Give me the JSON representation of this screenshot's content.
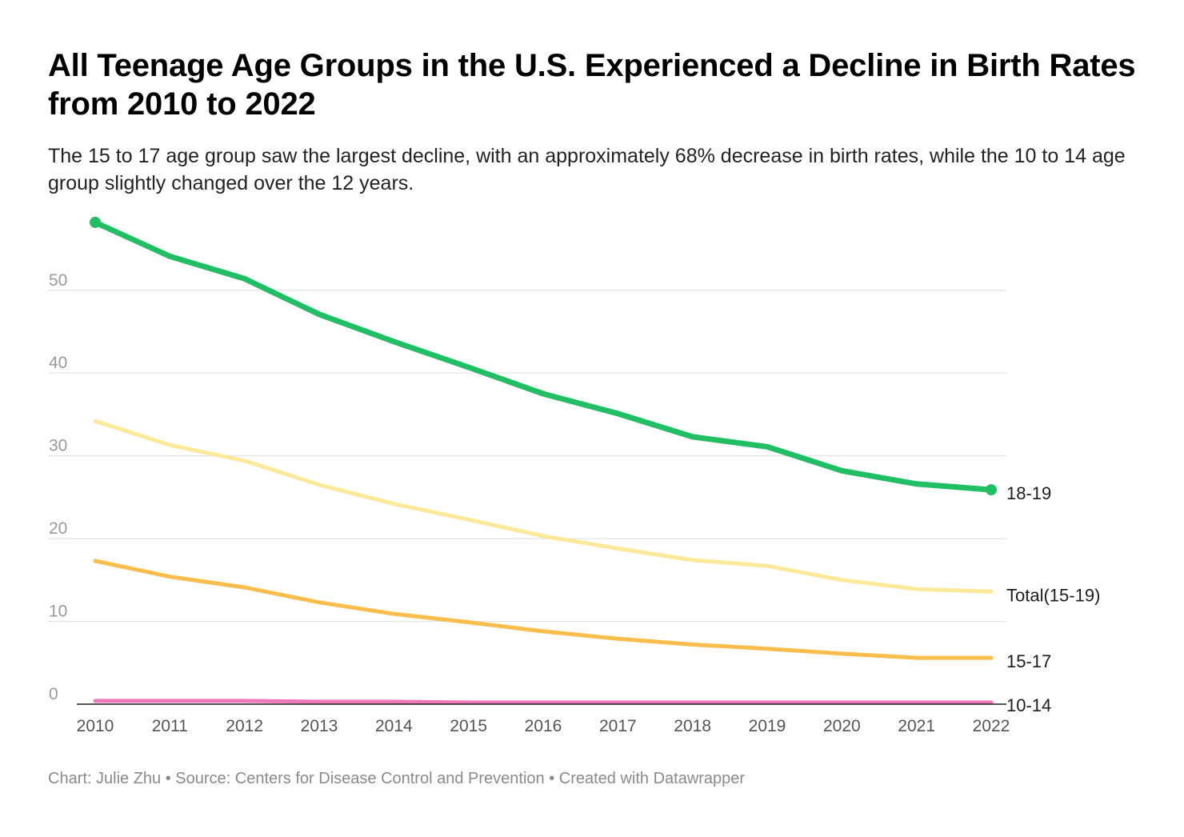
{
  "header": {
    "title": "All Teenage Age Groups in the U.S. Experienced a Decline in Birth Rates from 2010 to 2022",
    "subtitle": "The 15 to 17 age group saw the largest decline, with an approximately 68% decrease in birth rates, while the 10 to 14 age group slightly changed over the 12 years."
  },
  "footer": {
    "text": "Chart: Julie Zhu • Source: Centers for Disease Control and Prevention • Created with Datawrapper"
  },
  "chart_data": {
    "type": "line",
    "title": "All Teenage Age Groups in the U.S. Experienced a Decline in Birth Rates from 2010 to 2022",
    "subtitle": "The 15 to 17 age group saw the largest decline, with an approximately 68% decrease in birth rates, while the 10 to 14 age group slightly changed over the 12 years.",
    "xlabel": "",
    "ylabel": "",
    "x": [
      "2010",
      "2011",
      "2012",
      "2013",
      "2014",
      "2015",
      "2016",
      "2017",
      "2018",
      "2019",
      "2020",
      "2021",
      "2022"
    ],
    "ylim": [
      0,
      58
    ],
    "yticks": [
      0,
      10,
      20,
      30,
      40,
      50
    ],
    "grid": true,
    "legend": "direct labels at line ends",
    "series": [
      {
        "name": "18-19",
        "color": "#21bf64",
        "endpoint_markers": true,
        "values": [
          58.2,
          54.1,
          51.4,
          47.1,
          43.8,
          40.7,
          37.5,
          35.1,
          32.3,
          31.1,
          28.2,
          26.6,
          25.9
        ]
      },
      {
        "name": "Total(15-19)",
        "color": "#fde99a",
        "values": [
          34.2,
          31.3,
          29.4,
          26.5,
          24.2,
          22.3,
          20.3,
          18.8,
          17.4,
          16.7,
          15.0,
          13.9,
          13.6
        ]
      },
      {
        "name": "15-17",
        "color": "#fbbd4b",
        "values": [
          17.3,
          15.4,
          14.1,
          12.3,
          10.9,
          9.9,
          8.8,
          7.9,
          7.2,
          6.7,
          6.1,
          5.6,
          5.6
        ]
      },
      {
        "name": "10-14",
        "color": "#ef79b8",
        "values": [
          0.4,
          0.4,
          0.4,
          0.3,
          0.3,
          0.2,
          0.2,
          0.2,
          0.2,
          0.2,
          0.2,
          0.2,
          0.2
        ]
      }
    ]
  }
}
